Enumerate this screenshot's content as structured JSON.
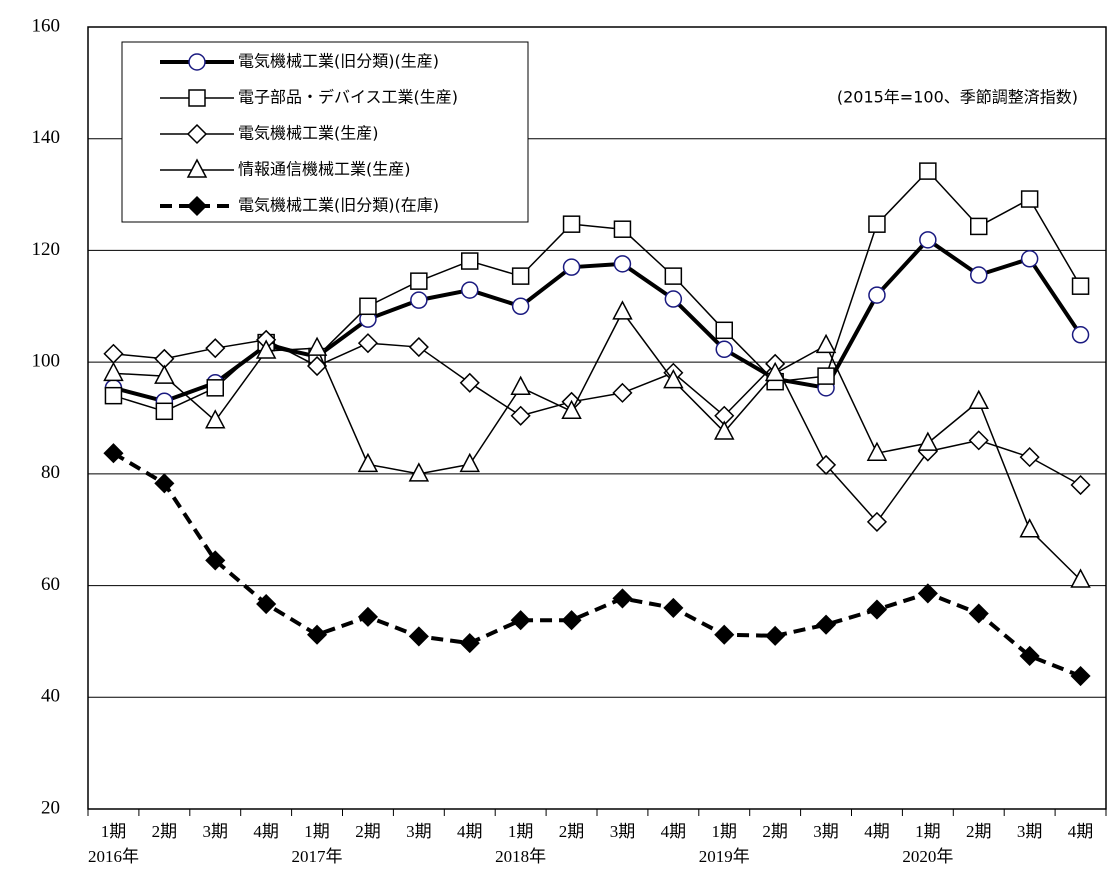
{
  "chart_data": {
    "type": "line",
    "annotation": "(2015年=100、季節調整済指数)",
    "categories": [
      "1期",
      "2期",
      "3期",
      "4期",
      "1期",
      "2期",
      "3期",
      "4期",
      "1期",
      "2期",
      "3期",
      "4期",
      "1期",
      "2期",
      "3期",
      "4期",
      "1期",
      "2期",
      "3期",
      "4期"
    ],
    "category_years": [
      "2016年",
      null,
      null,
      null,
      "2017年",
      null,
      null,
      null,
      "2018年",
      null,
      null,
      null,
      "2019年",
      null,
      null,
      null,
      "2020年",
      null,
      null,
      null
    ],
    "ylim": [
      20,
      160
    ],
    "yticks": [
      20,
      40,
      60,
      80,
      100,
      120,
      140,
      160
    ],
    "grid": true,
    "legend": "upper left",
    "series": [
      {
        "name": "電気機械工業(旧分類)(生産)",
        "color": "#000000",
        "marker": "circle",
        "marker_color": "#1a1a80",
        "line_width": 4,
        "dashed": false,
        "values": [
          95.4,
          93.0,
          96.3,
          103.0,
          101.0,
          107.7,
          111.1,
          112.9,
          110.0,
          117.0,
          117.6,
          111.3,
          102.3,
          97.0,
          95.4,
          112.0,
          121.9,
          115.6,
          118.5,
          104.9
        ]
      },
      {
        "name": "電子部品・デバイス工業(生産)",
        "color": "#000000",
        "marker": "square",
        "marker_color": "#000000",
        "line_width": 1.5,
        "dashed": false,
        "values": [
          94.0,
          91.2,
          95.4,
          103.5,
          101.0,
          110.0,
          114.5,
          118.1,
          115.4,
          124.7,
          123.8,
          115.4,
          105.7,
          96.5,
          97.5,
          124.7,
          134.2,
          124.3,
          129.2,
          113.6
        ]
      },
      {
        "name": "電気機械工業(生産)",
        "color": "#000000",
        "marker": "diamond",
        "marker_color": "#000000",
        "line_width": 1.5,
        "dashed": false,
        "values": [
          101.5,
          100.6,
          102.5,
          104.0,
          99.3,
          103.4,
          102.7,
          96.3,
          90.4,
          92.9,
          94.5,
          98.1,
          90.4,
          99.7,
          81.6,
          71.4,
          84.0,
          86.0,
          83.0,
          78.0
        ]
      },
      {
        "name": "情報通信機械工業(生産)",
        "color": "#000000",
        "marker": "triangle",
        "marker_color": "#000000",
        "line_width": 1.5,
        "dashed": false,
        "values": [
          98.0,
          97.5,
          89.5,
          102.0,
          102.5,
          81.7,
          80.0,
          81.7,
          95.5,
          91.2,
          109.0,
          96.7,
          87.5,
          98.0,
          103.0,
          83.7,
          85.5,
          93.0,
          70.0,
          61.0
        ]
      },
      {
        "name": "電気機械工業(旧分類)(在庫)",
        "color": "#000000",
        "marker": "filled-diamond",
        "marker_color": "#000000",
        "line_width": 4,
        "dashed": true,
        "values": [
          83.7,
          78.3,
          64.5,
          56.7,
          51.2,
          54.4,
          50.9,
          49.7,
          53.8,
          53.8,
          57.7,
          56.0,
          51.2,
          51.0,
          53.0,
          55.7,
          58.6,
          55.0,
          47.4,
          43.8
        ]
      }
    ]
  }
}
